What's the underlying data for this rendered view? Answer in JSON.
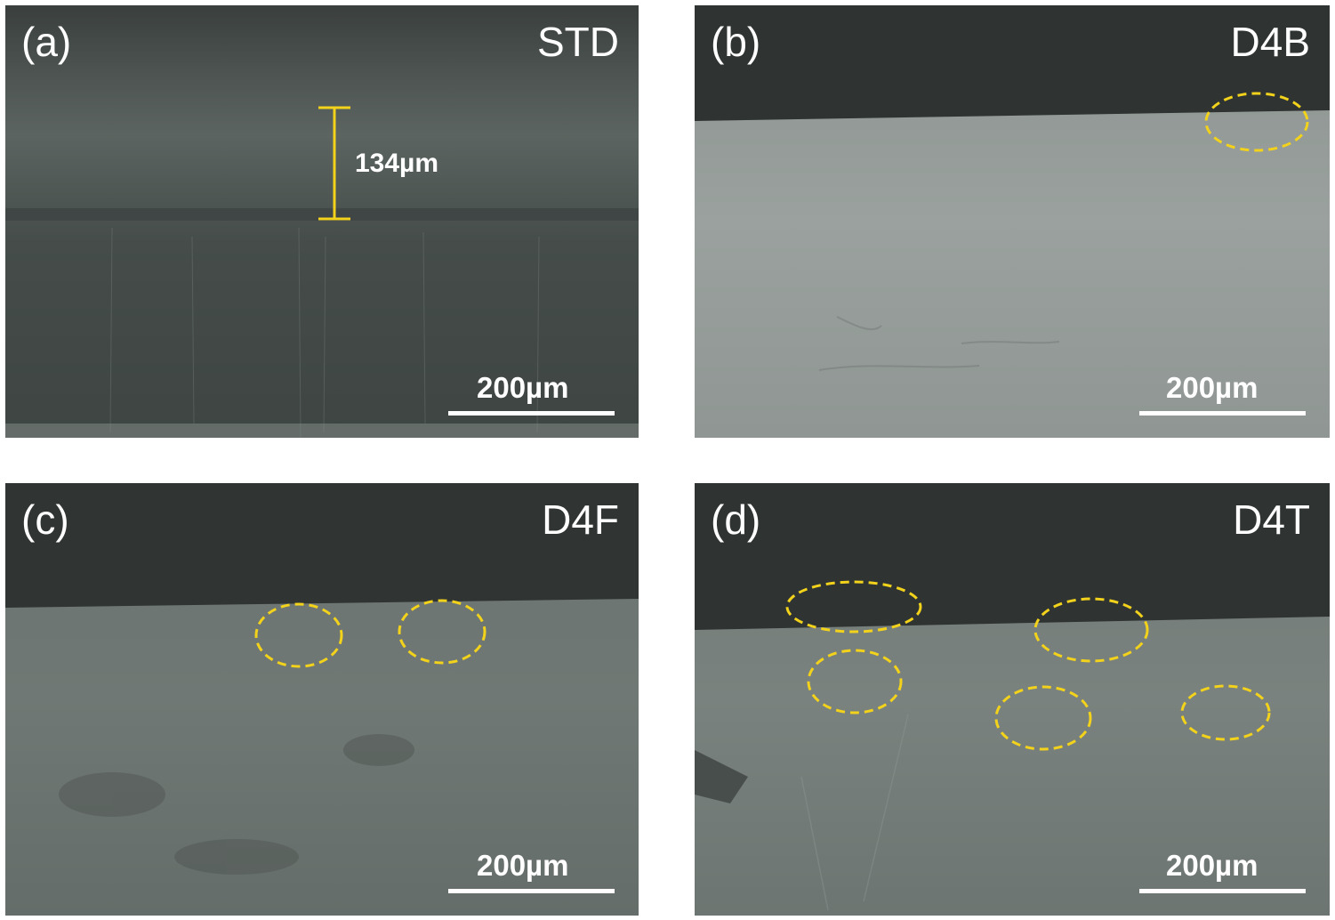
{
  "panels": [
    {
      "id": "a",
      "letter": "(a)",
      "sample": "STD",
      "scale": "200µm",
      "thickness": "134µm"
    },
    {
      "id": "b",
      "letter": "(b)",
      "sample": "D4B",
      "scale": "200µm"
    },
    {
      "id": "c",
      "letter": "(c)",
      "sample": "D4F",
      "scale": "200µm"
    },
    {
      "id": "d",
      "letter": "(d)",
      "sample": "D4T",
      "scale": "200µm"
    }
  ],
  "colors": {
    "marker": "#f2d21b",
    "text": "#ffffff"
  }
}
